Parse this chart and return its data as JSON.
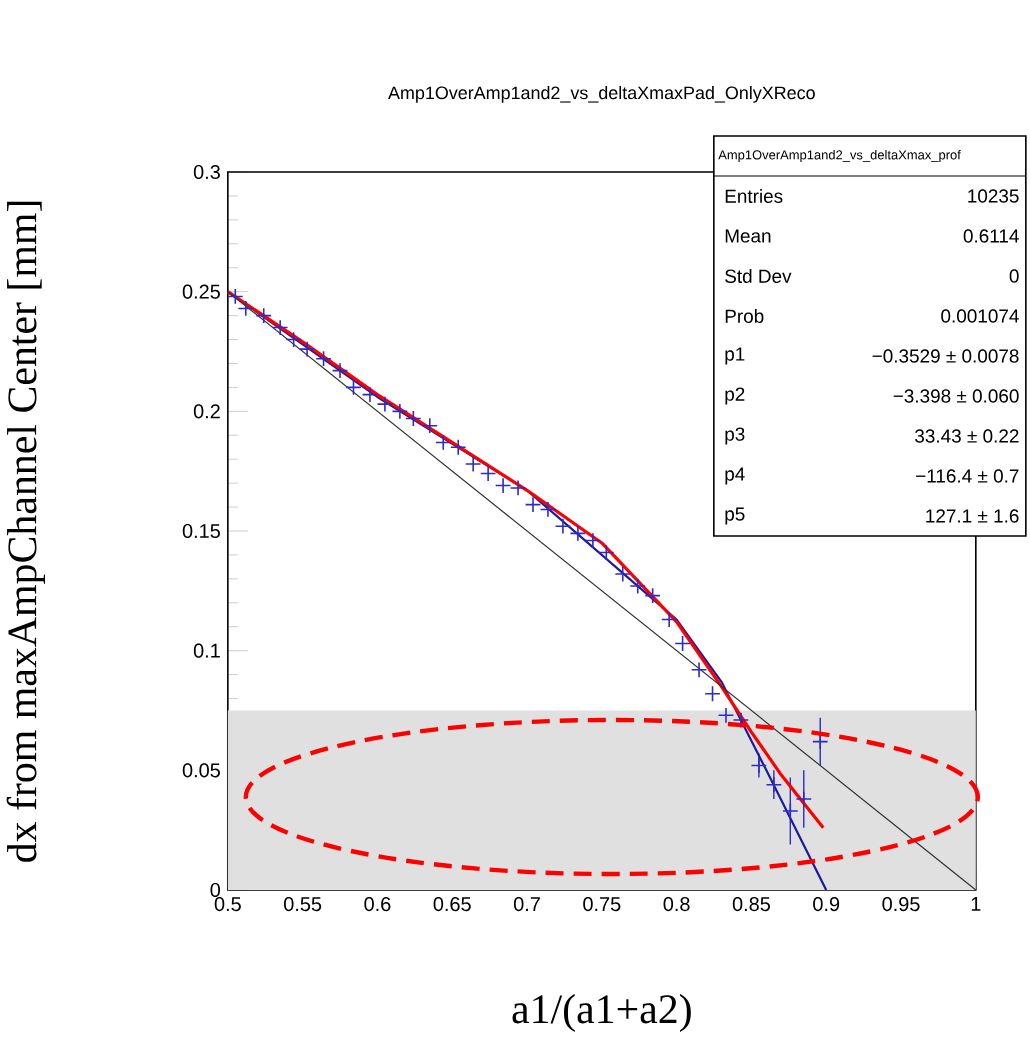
{
  "chart_data": {
    "type": "scatter",
    "title": "Amp1OverAmp1and2_vs_deltaXmaxPad_OnlyXReco",
    "xlabel": "a1/(a1+a2)",
    "ylabel": "dx from maxAmpChannel Center [mm]",
    "xlim": [
      0.5,
      1
    ],
    "ylim": [
      0,
      0.3
    ],
    "xticks": [
      0.5,
      0.55,
      0.6,
      0.65,
      0.7,
      0.75,
      0.8,
      0.85,
      0.9,
      0.95,
      1
    ],
    "yticks": [
      0,
      0.05,
      0.1,
      0.15,
      0.2,
      0.25,
      0.3
    ],
    "grid": false,
    "bands": [
      {
        "axis": "y",
        "from": 0,
        "to": 0.075,
        "color": "#e0e0e0"
      }
    ],
    "series": [
      {
        "color": "#2b2bc8",
        "marker": "cross",
        "x": [
          0.505,
          0.512,
          0.524,
          0.535,
          0.544,
          0.553,
          0.564,
          0.575,
          0.584,
          0.595,
          0.605,
          0.615,
          0.624,
          0.635,
          0.644,
          0.654,
          0.664,
          0.674,
          0.684,
          0.694,
          0.704,
          0.714,
          0.724,
          0.734,
          0.744,
          0.753,
          0.764,
          0.774,
          0.784,
          0.795,
          0.804,
          0.815,
          0.824,
          0.833,
          0.843,
          0.855,
          0.865,
          0.876,
          0.885,
          0.896
        ],
        "values": [
          0.248,
          0.243,
          0.24,
          0.235,
          0.23,
          0.226,
          0.222,
          0.217,
          0.21,
          0.207,
          0.203,
          0.2,
          0.197,
          0.194,
          0.187,
          0.185,
          0.178,
          0.174,
          0.169,
          0.168,
          0.161,
          0.159,
          0.152,
          0.149,
          0.146,
          0.141,
          0.132,
          0.127,
          0.123,
          0.113,
          0.103,
          0.092,
          0.082,
          0.073,
          0.071,
          0.052,
          0.044,
          0.033,
          0.038,
          0.062
        ],
        "errors": [
          null,
          null,
          null,
          null,
          null,
          null,
          null,
          null,
          null,
          null,
          null,
          null,
          null,
          null,
          null,
          null,
          null,
          null,
          null,
          null,
          null,
          null,
          null,
          null,
          null,
          null,
          null,
          null,
          null,
          null,
          null,
          null,
          null,
          null,
          null,
          0.005,
          0.006,
          0.014,
          0.012,
          0.01
        ]
      },
      {
        "type": "line",
        "color": "#1a1aa0",
        "x": [
          0.5,
          0.6,
          0.7,
          0.8,
          0.83,
          0.86,
          0.9
        ],
        "values": [
          0.25,
          0.206,
          0.167,
          0.113,
          0.087,
          0.05,
          0.0
        ]
      },
      {
        "type": "line",
        "color": "#ff0000",
        "x": [
          0.5,
          0.55,
          0.6,
          0.65,
          0.7,
          0.75,
          0.8,
          0.83,
          0.85,
          0.87,
          0.898
        ],
        "values": [
          0.25,
          0.229,
          0.207,
          0.187,
          0.167,
          0.145,
          0.112,
          0.085,
          0.066,
          0.048,
          0.026
        ]
      },
      {
        "type": "line",
        "color": "#333333",
        "x": [
          0.5,
          1
        ],
        "values": [
          0.25,
          0.0
        ]
      }
    ],
    "annotations": [
      "Amp1OverAmp1and2_vs_deltaXmax_prof",
      "Entries",
      "10235",
      "Mean",
      "0.6114",
      "Std Dev",
      "0",
      "Prob",
      "0.001074",
      "p1",
      "−0.3529 ± 0.0078",
      "p2",
      "−3.398 ± 0.060",
      "p3",
      "33.43 ± 0.22",
      "p4",
      "−116.4 ± 0.7",
      "p5",
      "127.1 ± 1.6"
    ]
  }
}
